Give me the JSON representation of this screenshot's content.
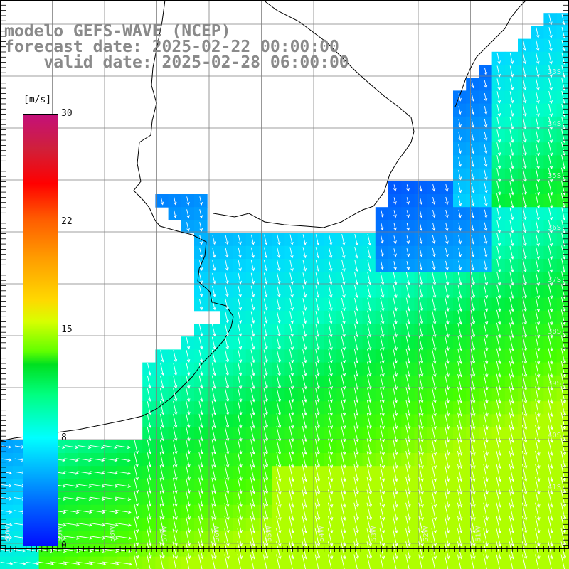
{
  "title": {
    "line1": "modelo GEFS-WAVE (NCEP)",
    "line2": "forecast date: 2025-02-22 00:00:00",
    "line3": "    valid date: 2025-02-28 06:00:00"
  },
  "legend": {
    "unit": "[m/s]",
    "ticks": [
      "30",
      "22",
      "15",
      "8",
      "0"
    ],
    "colors": [
      "#c4107a",
      "#ff0000",
      "#ff9a00",
      "#ffd800",
      "#00e020",
      "#00ffff",
      "#0060ff",
      "#0010ff"
    ]
  },
  "axes": {
    "lat_labels": [
      "33S",
      "34S",
      "35S",
      "36S",
      "37S",
      "38S",
      "39S",
      "40S",
      "41S"
    ],
    "lon_labels": [
      "60W",
      "59W",
      "58W",
      "57W",
      "56W",
      "55W",
      "54W",
      "53W",
      "52W",
      "51W"
    ]
  },
  "colors": {
    "land": "#ffffff",
    "grid": "#7f7f7f",
    "coast": "#000000",
    "arrows": "#ffffff"
  }
}
